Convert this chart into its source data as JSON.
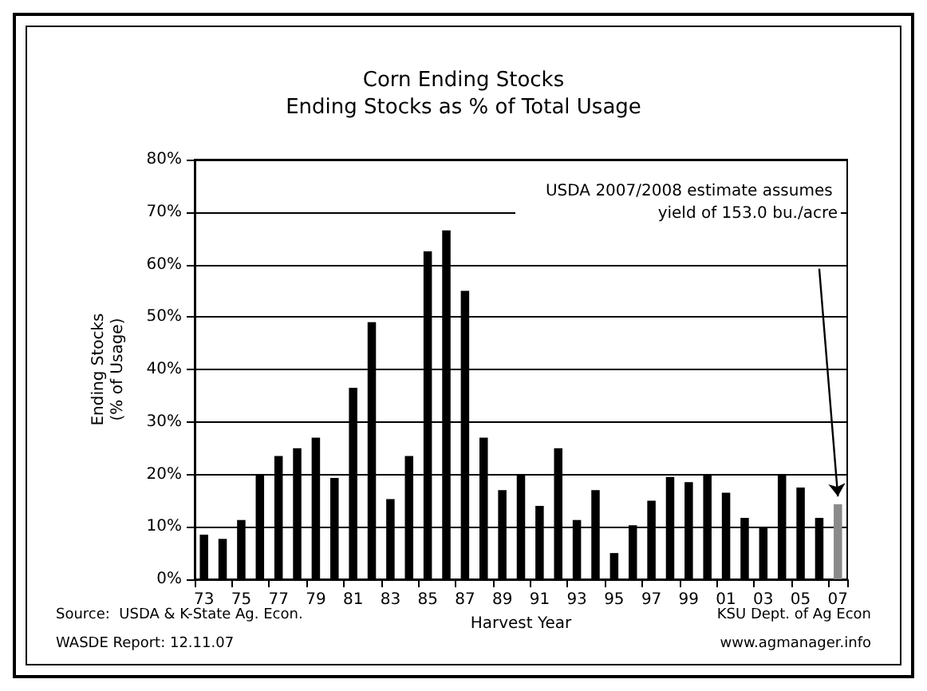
{
  "chart_data": {
    "type": "bar",
    "title": "Corn Ending Stocks",
    "subtitle": "Ending Stocks as % of Total Usage",
    "xlabel": "Harvest Year",
    "ylabel": "Ending Stocks\n(% of Usage)",
    "categories": [
      "73",
      null,
      "75",
      null,
      "77",
      null,
      "79",
      null,
      "81",
      null,
      "83",
      null,
      "85",
      null,
      "87",
      null,
      "89",
      null,
      "91",
      null,
      "93",
      null,
      "95",
      null,
      "97",
      null,
      "99",
      null,
      "01",
      null,
      "03",
      null,
      "05",
      null,
      "07"
    ],
    "values": [
      8.5,
      7.7,
      11.3,
      20,
      23.5,
      25,
      27,
      19.3,
      36.5,
      49,
      15.3,
      23.5,
      62.5,
      66.5,
      55,
      27,
      17,
      20,
      14,
      25,
      11.3,
      17,
      5,
      10.3,
      15,
      19.5,
      18.5,
      20,
      16.5,
      11.7,
      10,
      20,
      17.5,
      11.7,
      14.3
    ],
    "colors": [
      "#000000",
      "#000000",
      "#000000",
      "#000000",
      "#000000",
      "#000000",
      "#000000",
      "#000000",
      "#000000",
      "#000000",
      "#000000",
      "#000000",
      "#000000",
      "#000000",
      "#000000",
      "#000000",
      "#000000",
      "#000000",
      "#000000",
      "#000000",
      "#000000",
      "#000000",
      "#000000",
      "#000000",
      "#000000",
      "#000000",
      "#000000",
      "#000000",
      "#000000",
      "#000000",
      "#000000",
      "#000000",
      "#000000",
      "#000000",
      "#8a8a8a"
    ],
    "ylim": [
      0,
      80
    ],
    "yticks": [
      {
        "value": 0,
        "label": "0%"
      },
      {
        "value": 10,
        "label": "10%"
      },
      {
        "value": 20,
        "label": "20%"
      },
      {
        "value": 30,
        "label": "30%"
      },
      {
        "value": 40,
        "label": "40%"
      },
      {
        "value": 50,
        "label": "50%"
      },
      {
        "value": 60,
        "label": "60%"
      },
      {
        "value": 70,
        "label": "70%"
      },
      {
        "value": 80,
        "label": "80%"
      }
    ],
    "grid": "y",
    "annotations": [
      "USDA 2007/2008 estimate assumes yield of 153.0 bu./acre",
      "Source:  USDA & K-State Ag. Econ.",
      "WASDE Report: 12.11.07",
      "KSU Dept. of Ag Econ",
      "www.agmanager.info"
    ]
  }
}
